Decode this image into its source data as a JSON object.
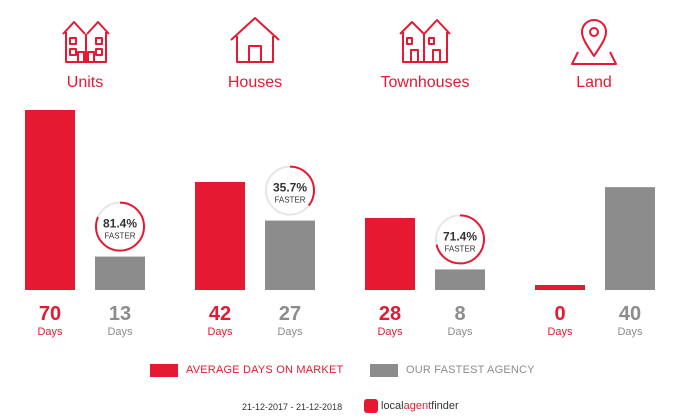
{
  "categories": [
    {
      "label": "Units",
      "icon": "units-icon"
    },
    {
      "label": "Houses",
      "icon": "house-icon"
    },
    {
      "label": "Townhouses",
      "icon": "townhouses-icon"
    },
    {
      "label": "Land",
      "icon": "land-pin-icon"
    }
  ],
  "chart_data": {
    "type": "bar",
    "categories": [
      "Units",
      "Houses",
      "Townhouses",
      "Land"
    ],
    "series": [
      {
        "name": "AVERAGE DAYS ON MARKET",
        "values": [
          70,
          42,
          28,
          0
        ],
        "color": "#e51931"
      },
      {
        "name": "OUR FASTEST AGENCY",
        "values": [
          13,
          27,
          8,
          40
        ],
        "color": "#8c8c8c"
      }
    ],
    "value_unit": "Days",
    "faster_badges": [
      {
        "category": "Units",
        "percent": 81.4,
        "label": "81.4%",
        "sub": "FASTER"
      },
      {
        "category": "Houses",
        "percent": 35.7,
        "label": "35.7%",
        "sub": "FASTER"
      },
      {
        "category": "Townhouses",
        "percent": 71.4,
        "label": "71.4%",
        "sub": "FASTER"
      }
    ],
    "ylim": [
      0,
      70
    ],
    "grid": false,
    "legend_position": "bottom"
  },
  "legend": {
    "market_label": "AVERAGE DAYS ON MARKET",
    "agency_label": "OUR FASTEST AGENCY",
    "market_color": "#e51931",
    "agency_color": "#8c8c8c"
  },
  "footer": {
    "date_range": "21-12-2017 - 21-12-2018",
    "brand_local": "local",
    "brand_agent": "agent",
    "brand_finder": "finder"
  }
}
